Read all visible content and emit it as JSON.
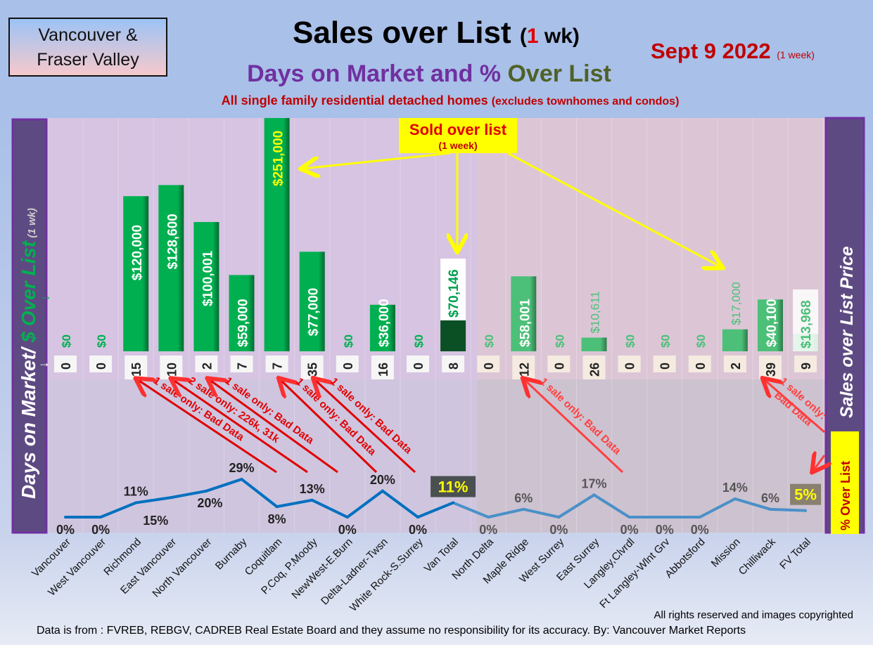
{
  "header": {
    "region_line1": "Vancouver &",
    "region_line2": "Fraser Valley",
    "title_main": "Sales over List",
    "title_paren_open": "(",
    "title_num": "1",
    "title_paren_rest": " wk)",
    "subtitle_a": "Days on Market and % ",
    "subtitle_b": "Over List",
    "description": "All single family residential detached homes ",
    "description_small": "(excludes townhomes and condos)",
    "date": "Sept 9  2022 ",
    "date_small": "(1 week)"
  },
  "footer": {
    "rights": "All rights reserved and  images copyrighted",
    "source": "Data is from : FVREB, REBGV, CADREB Real Estate Board and they assume no responsibility for its accuracy. By: Vancouver Market Reports"
  },
  "colors": {
    "bar": "#00b050",
    "bar_fv": "#4cc078",
    "line_van": "#0070c0",
    "line_fv": "#4a90c8",
    "accent_red": "#e00000",
    "callout": "#ffff00"
  },
  "chart_data": {
    "type": "bar+line",
    "categories": [
      "Vancouver",
      "West Vancouver",
      "Richmond",
      "East Vancouver",
      "North Vancouver",
      "Burnaby",
      "Coquitlam",
      "P.Coq, P.Moody",
      "NewWest-E.Burn",
      "Delta-Ladner-Twsn",
      "White Rock-S.Surrey",
      "Van Total",
      "North Delta",
      "Maple Ridge",
      "West Surrey",
      "East Surrey",
      "Langley,Clvrdl",
      "Ft Langley-Wlnt Grv",
      "Abbotsford",
      "Mission",
      "Chilliwack",
      "FV Total"
    ],
    "series": [
      {
        "name": "$ Over List",
        "values": [
          0,
          0,
          120000,
          128600,
          100001,
          59000,
          251000,
          77000,
          0,
          36000,
          0,
          70146,
          0,
          58001,
          0,
          10611,
          0,
          0,
          0,
          17000,
          40100,
          13968
        ],
        "labels": [
          "$0",
          "$0",
          "$120,000",
          "$128,600",
          "$100,001",
          "$59,000",
          "$251,000",
          "$77,000",
          "$0",
          "$36,000",
          "$0",
          "$70,146",
          "$0",
          "$58,001",
          "$0",
          "$10,611",
          "$0",
          "$0",
          "$0",
          "$17,000",
          "$40,100",
          "$13,968"
        ]
      },
      {
        "name": "Days on Market",
        "values": [
          0,
          0,
          15,
          10,
          2,
          7,
          7,
          35,
          0,
          16,
          0,
          8,
          0,
          12,
          0,
          26,
          0,
          0,
          0,
          2,
          39,
          9
        ]
      },
      {
        "name": "% Over List",
        "values": [
          0,
          0,
          11,
          15,
          20,
          29,
          8,
          13,
          0,
          20,
          0,
          11,
          0,
          6,
          0,
          17,
          0,
          0,
          0,
          14,
          6,
          5
        ],
        "labels": [
          "0%",
          "0%",
          "11%",
          "15%",
          "20%",
          "29%",
          "8%",
          "13%",
          "0%",
          "20%",
          "0%",
          "11%",
          "0%",
          "6%",
          "0%",
          "17%",
          "0%",
          "0%",
          "0%",
          "14%",
          "6%",
          "5%"
        ]
      }
    ],
    "left_axis_label": "Days on Market/ ",
    "left_axis_label_green": "$ Over List",
    "left_axis_label_small": " (1 wk)",
    "right_axis_label": "Sales over List Price",
    "right_axis_badge": "% Over List",
    "callout_title": "Sold over list",
    "callout_sub": "(1 week)",
    "annotations": [
      {
        "target": "Richmond",
        "text": "1 sale only: Bad Data"
      },
      {
        "target": "East Vancouver",
        "text": "2 sale only: 226k, 31k"
      },
      {
        "target": "North Vancouver",
        "text": "1 sale only: Bad Data"
      },
      {
        "target": "Coquitlam",
        "text": "1 sale only: Bad Data"
      },
      {
        "target": "P.Coq, P.Moody",
        "text": "1 sale only: Bad Data"
      },
      {
        "target": "Maple Ridge",
        "text": "1 sale only: Bad Data"
      },
      {
        "target": "Chilliwack",
        "text": "1 sale only:",
        "text2": "Bad Data"
      }
    ]
  }
}
